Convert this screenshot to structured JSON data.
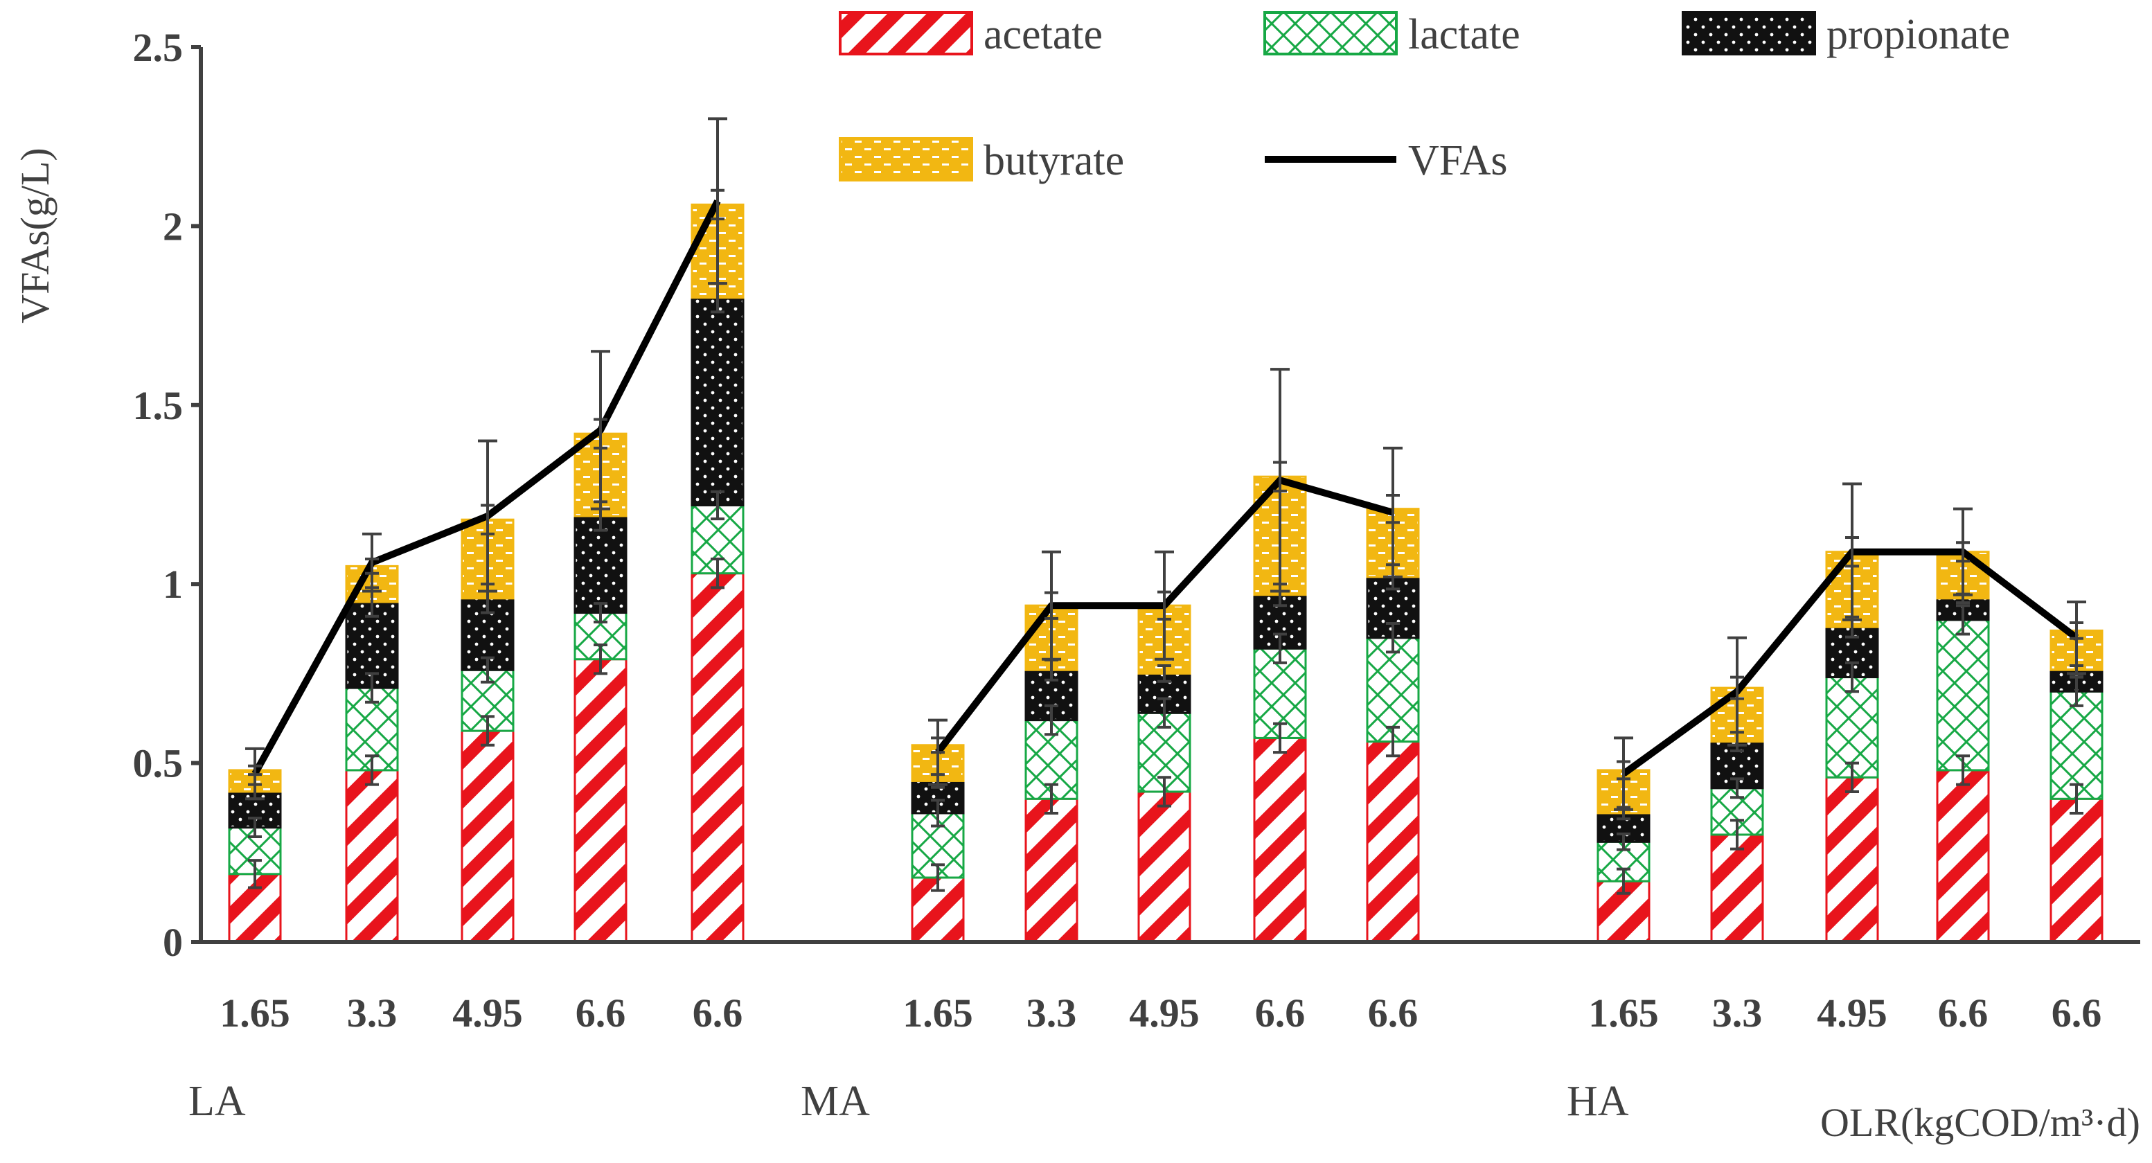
{
  "chart_data": {
    "type": "bar",
    "stacked": true,
    "ylabel": "VFAs(g/L)",
    "xlabel": "OLR(kgCOD/m³·d)",
    "ylim": [
      0,
      2.5
    ],
    "yticks": [
      "0",
      "0.5",
      "1",
      "1.5",
      "2",
      "2.5"
    ],
    "yticks_values": [
      0,
      0.5,
      1,
      1.5,
      2,
      2.5
    ],
    "legend": [
      "acetate",
      "lactate",
      "propionate",
      "butyrate",
      "VFAs"
    ],
    "colors": {
      "acetate": "#e8141c",
      "lactate": "#17a845",
      "propionate": "#111111",
      "butyrate": "#f2b712",
      "line": "#000000",
      "axis": "#404040",
      "error": "#404040"
    },
    "groups": [
      {
        "name": "LA",
        "categories": [
          "1.65",
          "3.3",
          "4.95",
          "6.6",
          "6.6"
        ],
        "acetate": [
          0.19,
          0.48,
          0.59,
          0.79,
          1.03
        ],
        "lactate": [
          0.13,
          0.23,
          0.17,
          0.13,
          0.19
        ],
        "propionate": [
          0.1,
          0.24,
          0.2,
          0.27,
          0.58
        ],
        "butyrate": [
          0.06,
          0.1,
          0.22,
          0.23,
          0.26
        ],
        "vfas": [
          0.47,
          1.06,
          1.19,
          1.43,
          2.07
        ],
        "vfas_err": [
          0.07,
          0.08,
          0.21,
          0.22,
          0.23
        ]
      },
      {
        "name": "MA",
        "categories": [
          "1.65",
          "3.3",
          "4.95",
          "6.6",
          "6.6"
        ],
        "acetate": [
          0.18,
          0.4,
          0.42,
          0.57,
          0.56
        ],
        "lactate": [
          0.18,
          0.22,
          0.22,
          0.25,
          0.29
        ],
        "propionate": [
          0.09,
          0.14,
          0.11,
          0.15,
          0.17
        ],
        "butyrate": [
          0.1,
          0.18,
          0.19,
          0.33,
          0.19
        ],
        "vfas": [
          0.53,
          0.94,
          0.94,
          1.29,
          1.2
        ],
        "vfas_err": [
          0.09,
          0.15,
          0.15,
          0.31,
          0.18
        ]
      },
      {
        "name": "HA",
        "categories": [
          "1.65",
          "3.3",
          "4.95",
          "6.6",
          "6.6"
        ],
        "acetate": [
          0.17,
          0.3,
          0.46,
          0.48,
          0.4
        ],
        "lactate": [
          0.11,
          0.13,
          0.28,
          0.42,
          0.3
        ],
        "propionate": [
          0.08,
          0.13,
          0.14,
          0.06,
          0.06
        ],
        "butyrate": [
          0.12,
          0.15,
          0.21,
          0.13,
          0.11
        ],
        "vfas": [
          0.47,
          0.7,
          1.09,
          1.09,
          0.85
        ],
        "vfas_err": [
          0.1,
          0.15,
          0.19,
          0.12,
          0.1
        ]
      }
    ]
  }
}
